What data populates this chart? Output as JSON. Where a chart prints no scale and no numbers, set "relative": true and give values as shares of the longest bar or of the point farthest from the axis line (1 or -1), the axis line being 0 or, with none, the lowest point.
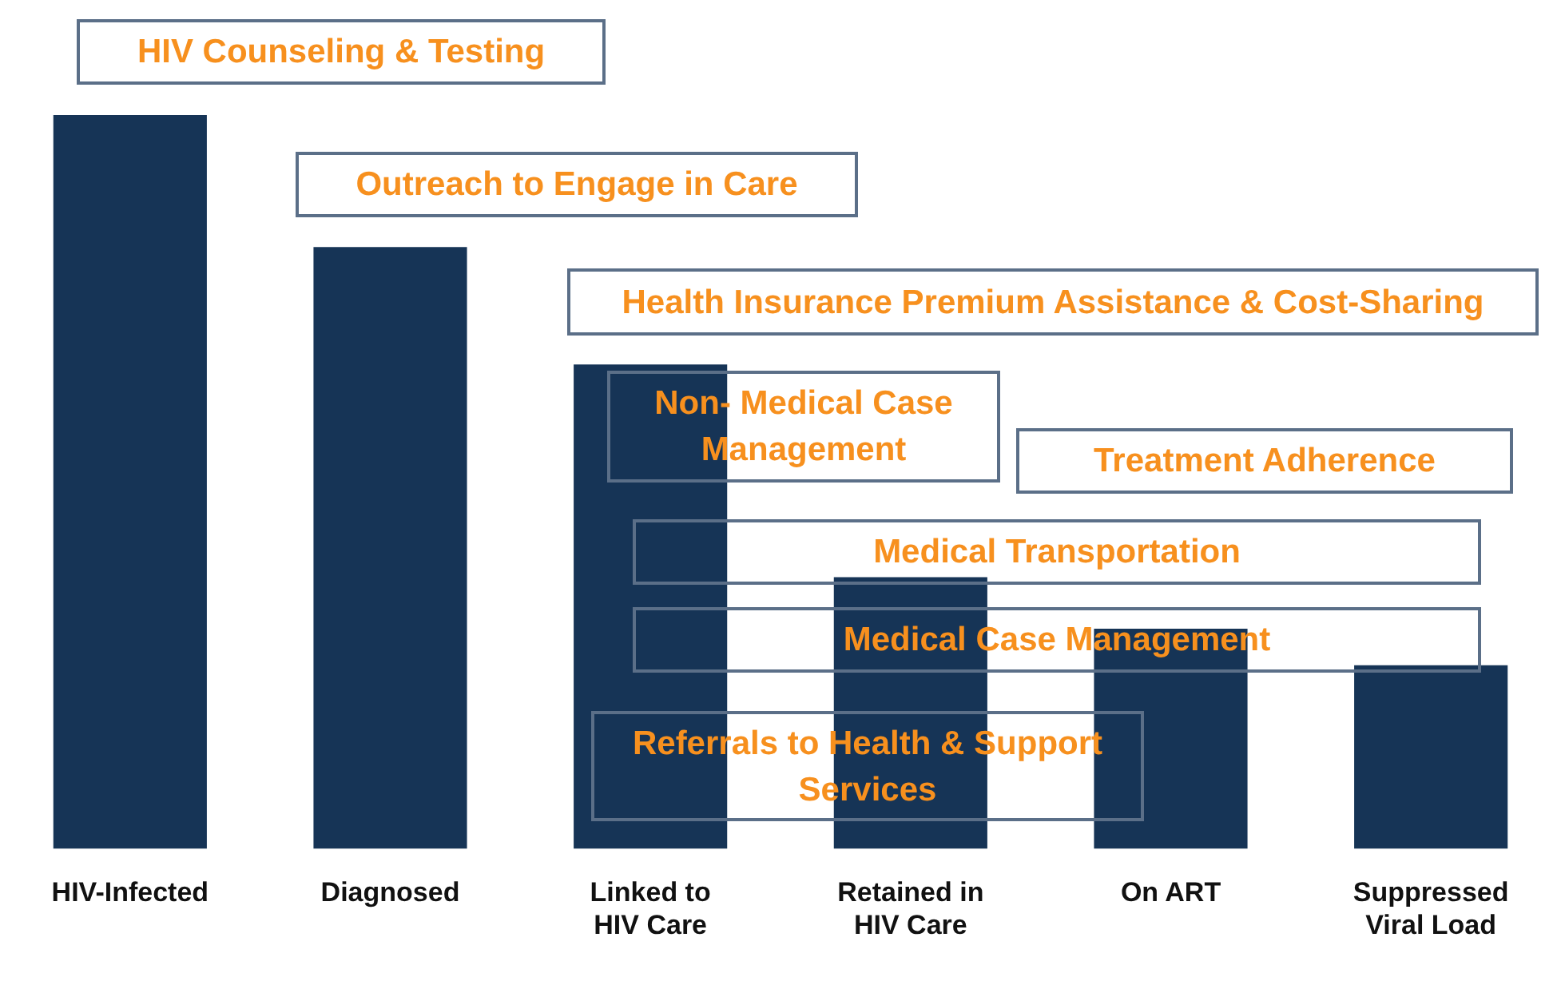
{
  "chart_data": {
    "type": "bar",
    "relative": true,
    "categories": [
      "HIV-Infected",
      "Diagnosed",
      "Linked to HIV Care",
      "Retained in HIV Care",
      "On ART",
      "Suppressed Viral Load"
    ],
    "values": [
      1,
      0.82,
      0.66,
      0.37,
      0.3,
      0.25
    ],
    "color": "#163456",
    "grid": false,
    "legend": false,
    "annotations": [
      "HIV Counseling & Testing",
      "Outreach to Engage in Care",
      "Health Insurance Premium Assistance & Cost-Sharing",
      "Non- Medical Case Management",
      "Treatment Adherence",
      "Medical Transportation",
      "Medical Case Management",
      "Referrals to Health & Support Services"
    ]
  }
}
